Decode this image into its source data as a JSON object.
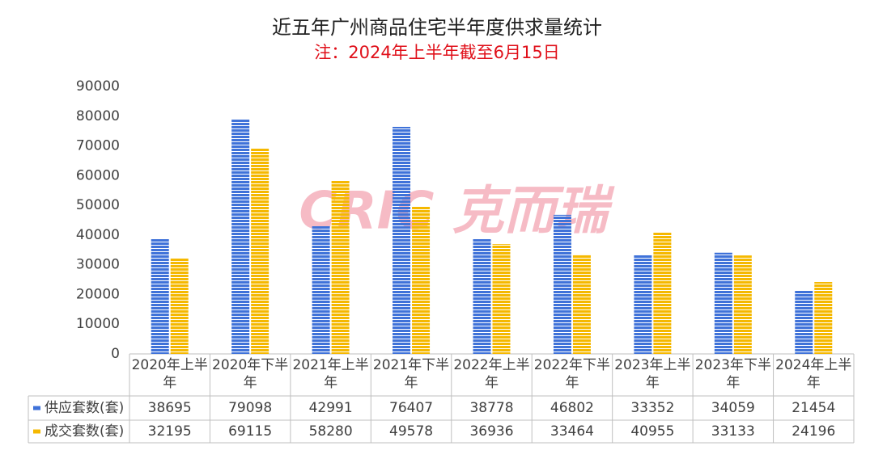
{
  "chart_data": {
    "type": "bar",
    "title": "近五年广州商品住宅半年度供求量统计",
    "subtitle": "注：2024年上半年截至6月15日",
    "watermark": "CRIC 克而瑞",
    "categories": [
      "2020年上半年",
      "2020年下半年",
      "2021年上半年",
      "2021年下半年",
      "2022年上半年",
      "2022年下半年",
      "2023年上半年",
      "2023年下半年",
      "2024年上半年"
    ],
    "series": [
      {
        "name": "供应套数(套)",
        "color": "#3f72d9",
        "values": [
          38695,
          79098,
          42991,
          76407,
          38778,
          46802,
          33352,
          34059,
          21454
        ]
      },
      {
        "name": "成交套数(套)",
        "color": "#f5b800",
        "values": [
          32195,
          69115,
          58280,
          49578,
          36936,
          33464,
          40955,
          33133,
          24196
        ]
      }
    ],
    "ylim": [
      0,
      90000
    ],
    "yticks": [
      0,
      10000,
      20000,
      30000,
      40000,
      50000,
      60000,
      70000,
      80000,
      90000
    ],
    "grid": false,
    "legend": "table"
  }
}
